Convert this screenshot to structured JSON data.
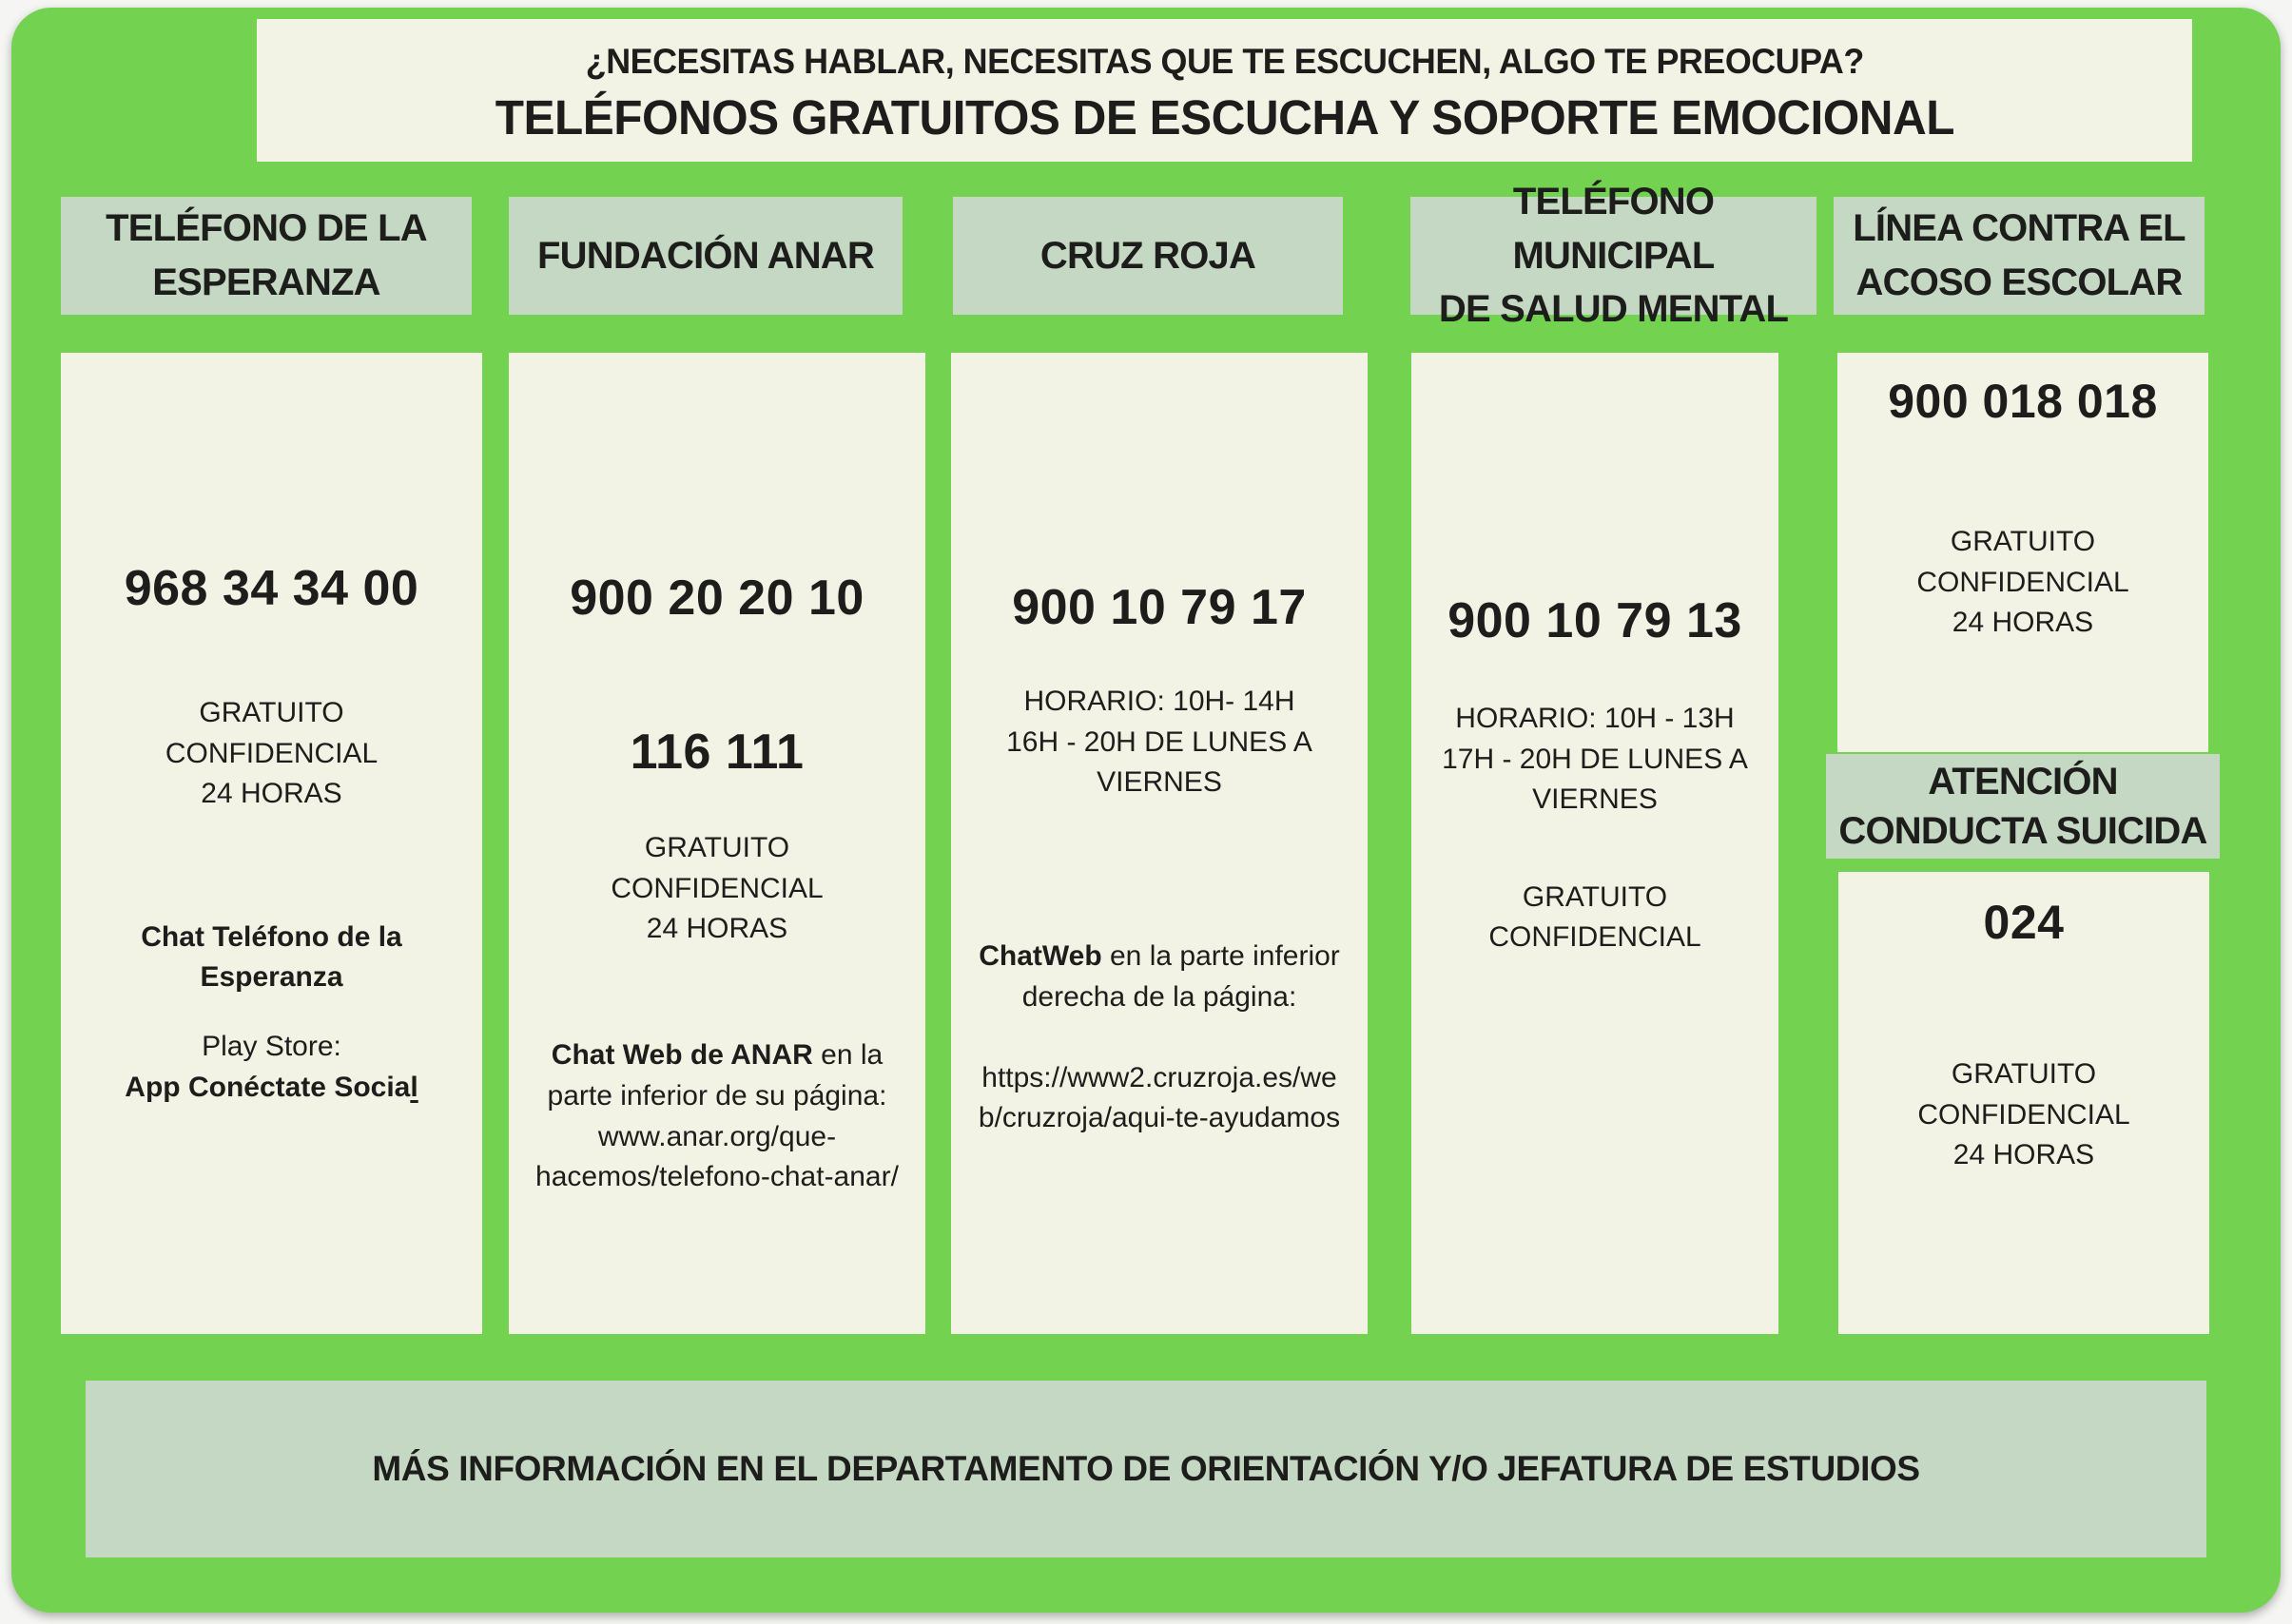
{
  "page": {
    "background_color": "#f5f6f3",
    "canvas_color": "#73d351",
    "card_color": "#f2f3e4",
    "label_color": "#c5d8c3",
    "text_color": "#1d1d1b"
  },
  "header": {
    "question": "¿NECESITAS HABLAR, NECESITAS QUE TE ESCUCHEN, ALGO TE PREOCUPA?",
    "title": "TELÉFONOS GRATUITOS DE ESCUCHA Y SOPORTE EMOCIONAL"
  },
  "columns": [
    {
      "title": "TELÉFONO DE LA\nESPERANZA",
      "phone": "968 34 34 00",
      "availability": "GRATUITO\nCONFIDENCIAL\n24 HORAS",
      "chat": "Chat Teléfono de la\nEsperanza",
      "play_store": "Play Store:",
      "app_name": "App Conéctate Socia",
      "app_name_underlined": "l"
    },
    {
      "title": "FUNDACIÓN ANAR",
      "phone": "900 20 20 10",
      "phone2": "116 111",
      "availability": "GRATUITO\nCONFIDENCIAL\n24 HORAS",
      "chat_bold": "Chat Web de ANAR",
      "chat_rest": " en la\nparte inferior de su página:",
      "url": "www.anar.org/que-\nhacemos/telefono-chat-anar/"
    },
    {
      "title": "CRUZ ROJA",
      "phone": "900 10 79 17",
      "schedule": "HORARIO: 10H- 14H\n16H - 20H DE LUNES A\nVIERNES",
      "chat_bold": "ChatWeb",
      "chat_rest": " en la parte inferior\nderecha de la página:",
      "url": "https://www2.cruzroja.es/we\nb/cruzroja/aqui-te-ayudamos"
    },
    {
      "title": "TELÉFONO MUNICIPAL\nDE SALUD MENTAL",
      "phone": "900 10 79 13",
      "schedule": "HORARIO: 10H - 13H\n17H - 20H DE LUNES A\nVIERNES",
      "availability": "GRATUITO\nCONFIDENCIAL"
    },
    {
      "title": "LÍNEA CONTRA EL\nACOSO ESCOLAR",
      "phone": "900 018 018",
      "availability": "GRATUITO\nCONFIDENCIAL\n24 HORAS",
      "subheader": "ATENCIÓN\nCONDUCTA SUICIDA",
      "phone2": "024",
      "availability2": "GRATUITO\nCONFIDENCIAL\n24 HORAS"
    }
  ],
  "footer": {
    "text": "MÁS INFORMACIÓN EN EL DEPARTAMENTO DE ORIENTACIÓN Y/O JEFATURA DE ESTUDIOS"
  }
}
